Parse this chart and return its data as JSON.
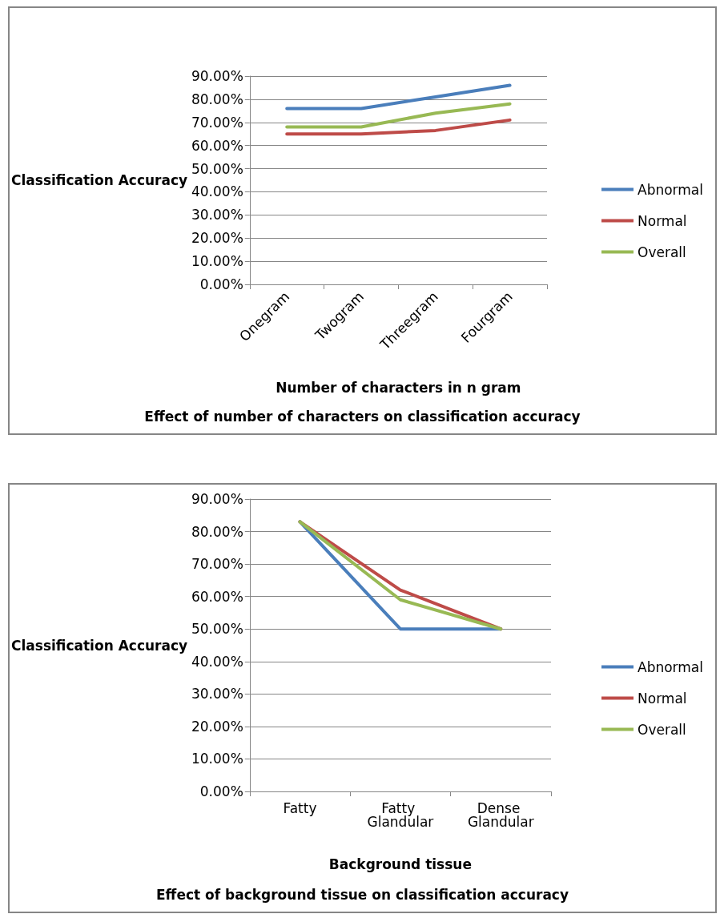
{
  "chart_data": [
    {
      "type": "line",
      "title": "Effect of number of characters on classification accuracy",
      "xlabel": "Number of characters in n gram",
      "ylabel": "Classification Accuracy",
      "categories": [
        "Onegram",
        "Twogram",
        "Threegram",
        "Fourgram"
      ],
      "series": [
        {
          "name": "Abnormal",
          "color": "#4a7ebb",
          "values": [
            76,
            76,
            81,
            86
          ]
        },
        {
          "name": "Normal",
          "color": "#be4b48",
          "values": [
            65,
            65,
            66.5,
            71
          ]
        },
        {
          "name": "Overall",
          "color": "#98b954",
          "values": [
            68,
            68,
            74,
            78
          ]
        }
      ],
      "ylim": [
        0,
        90
      ],
      "yticks": [
        {
          "value": 0,
          "label": "0.00%"
        },
        {
          "value": 10,
          "label": "10.00%"
        },
        {
          "value": 20,
          "label": "20.00%"
        },
        {
          "value": 30,
          "label": "30.00%"
        },
        {
          "value": 40,
          "label": "40.00%"
        },
        {
          "value": 50,
          "label": "50.00%"
        },
        {
          "value": 60,
          "label": "60.00%"
        },
        {
          "value": 70,
          "label": "70.00%"
        },
        {
          "value": 80,
          "label": "80.00%"
        },
        {
          "value": 90,
          "label": "90.00%"
        }
      ],
      "grid": "y",
      "legend": "right",
      "marker": "none",
      "line_style": "solid"
    },
    {
      "type": "line",
      "title": "Effect of background tissue on classification accuracy",
      "xlabel": "Background tissue",
      "ylabel": "Classification Accuracy",
      "categories": [
        "Fatty",
        "Fatty Glandular",
        "Dense Glandular"
      ],
      "series": [
        {
          "name": "Abnormal",
          "color": "#4a7ebb",
          "values": [
            83,
            50,
            50
          ]
        },
        {
          "name": "Normal",
          "color": "#be4b48",
          "values": [
            83,
            62,
            50
          ]
        },
        {
          "name": "Overall",
          "color": "#98b954",
          "values": [
            83,
            59,
            50
          ]
        }
      ],
      "ylim": [
        0,
        90
      ],
      "yticks": [
        {
          "value": 0,
          "label": "0.00%"
        },
        {
          "value": 10,
          "label": "10.00%"
        },
        {
          "value": 20,
          "label": "20.00%"
        },
        {
          "value": 30,
          "label": "30.00%"
        },
        {
          "value": 40,
          "label": "40.00%"
        },
        {
          "value": 50,
          "label": "50.00%"
        },
        {
          "value": 60,
          "label": "60.00%"
        },
        {
          "value": 70,
          "label": "70.00%"
        },
        {
          "value": 80,
          "label": "80.00%"
        },
        {
          "value": 90,
          "label": "90.00%"
        }
      ],
      "grid": "y",
      "legend": "right",
      "marker": "none",
      "line_style": "solid"
    }
  ]
}
